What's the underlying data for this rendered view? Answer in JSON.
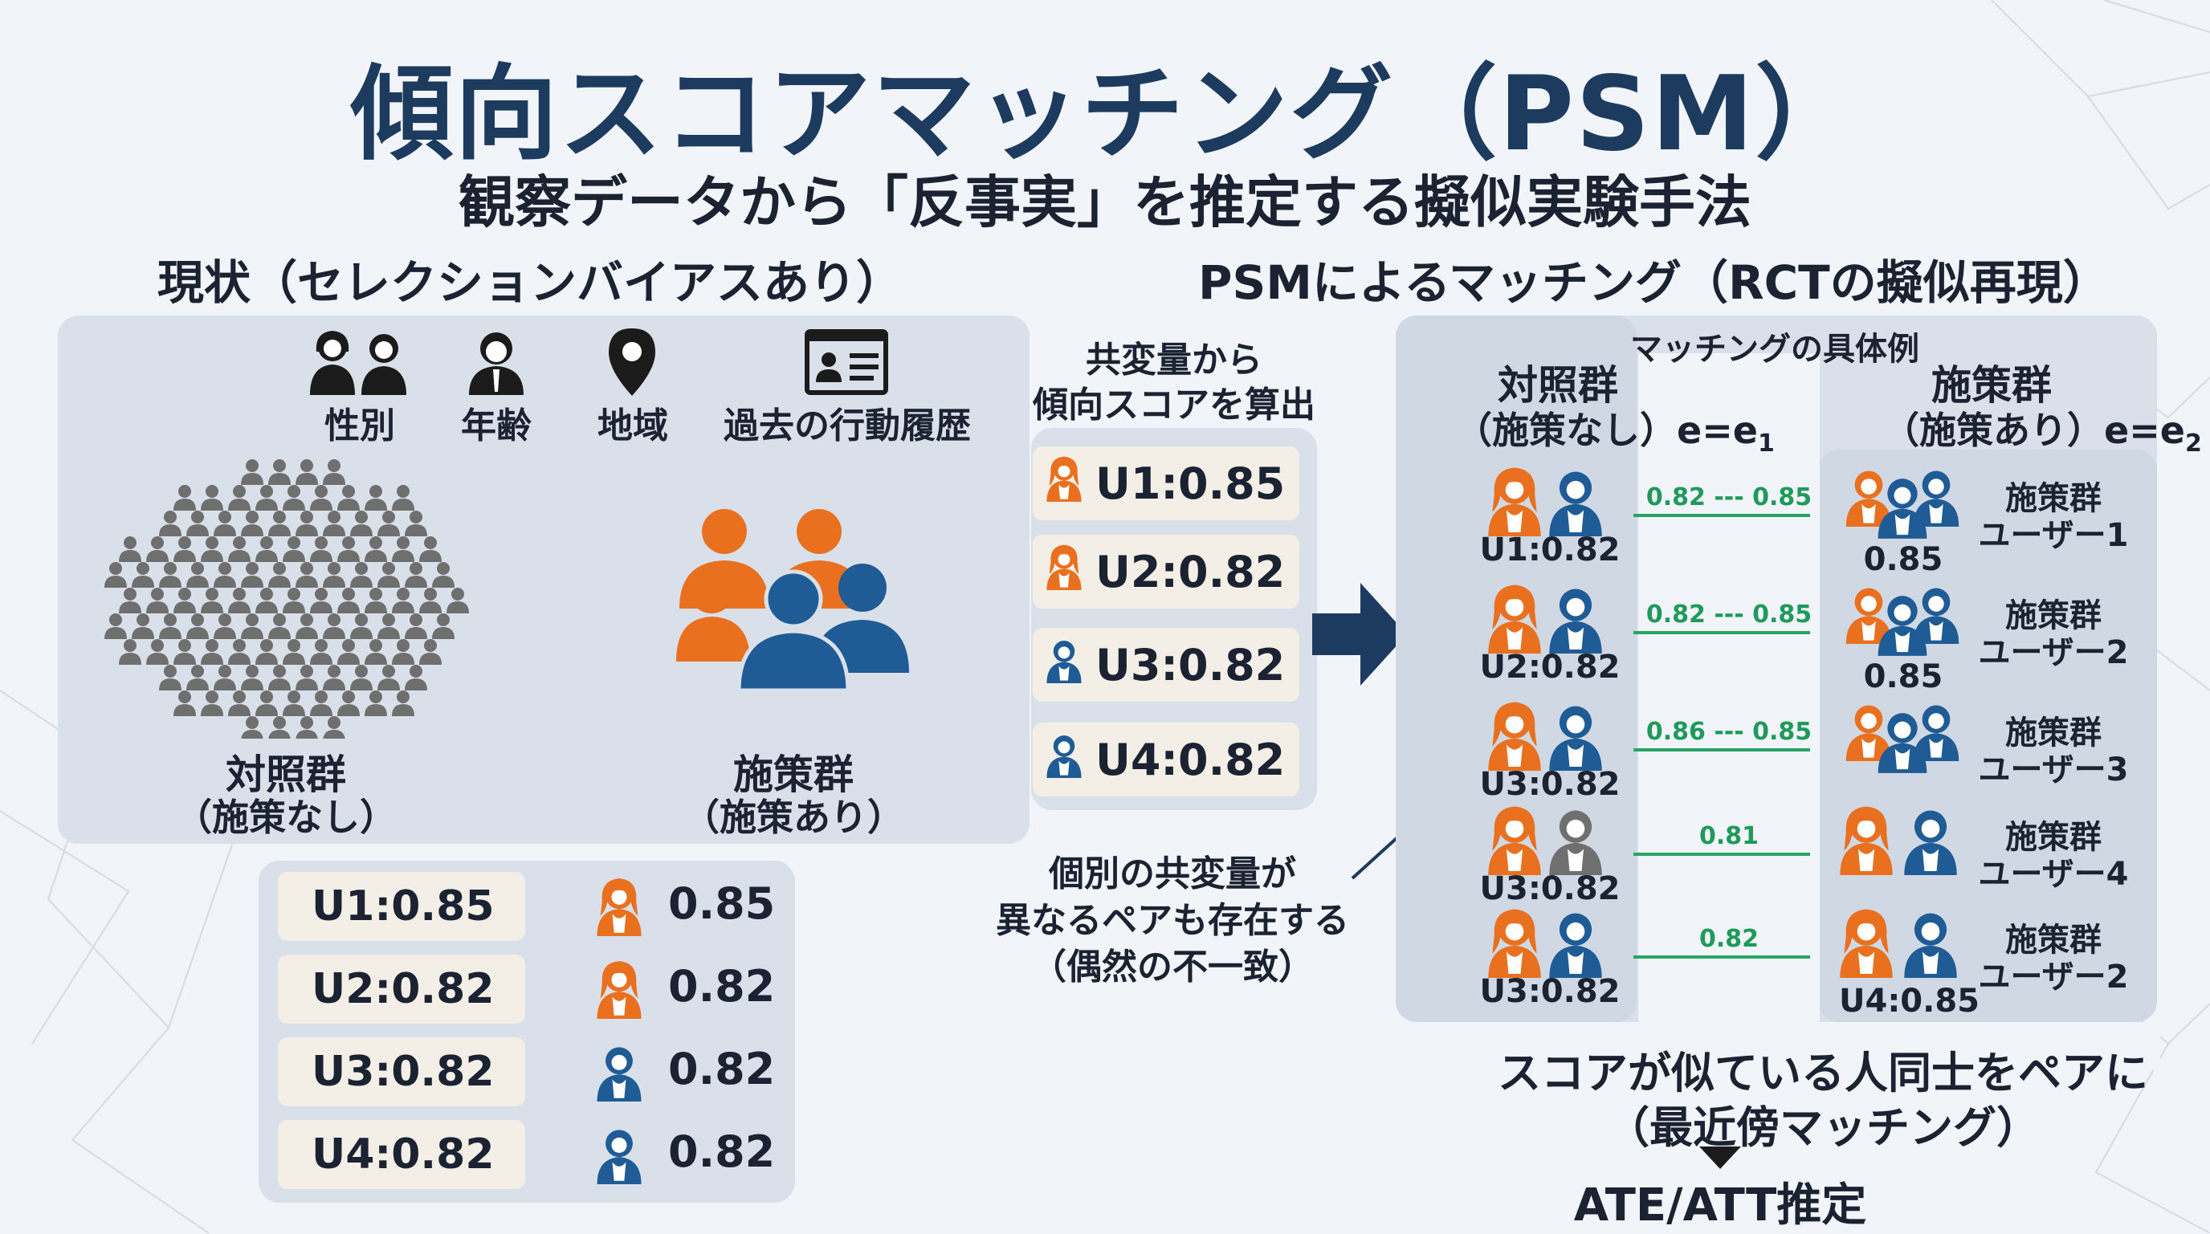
{
  "title": "傾向スコアマッチング（PSM）",
  "subtitle": "観察データから「反事実」を推定する擬似実験手法",
  "left": {
    "heading": "現状（セレクションバイアスあり）",
    "covariates": [
      {
        "icon": "gender-icon",
        "label": "性別"
      },
      {
        "icon": "age-icon",
        "label": "年齢"
      },
      {
        "icon": "location-pin-icon",
        "label": "地域"
      },
      {
        "icon": "history-card-icon",
        "label": "過去の行動履歴"
      }
    ],
    "control_label": "対照群",
    "control_sub": "（施策なし）",
    "treatment_label": "施策群",
    "treatment_sub": "（施策あり）",
    "score_rows": [
      {
        "id": "U1:0.85",
        "value": "0.85",
        "color": "orange"
      },
      {
        "id": "U2:0.82",
        "value": "0.82",
        "color": "orange"
      },
      {
        "id": "U3:0.82",
        "value": "0.82",
        "color": "blue"
      },
      {
        "id": "U4:0.82",
        "value": "0.82",
        "color": "blue"
      }
    ]
  },
  "middle": {
    "heading_line1": "共変量から",
    "heading_line2": "傾向スコアを算出",
    "scores": [
      {
        "text": "U1:0.85",
        "color": "orange"
      },
      {
        "text": "U2:0.82",
        "color": "orange"
      },
      {
        "text": "U3:0.82",
        "color": "blue"
      },
      {
        "text": "U4:0.82",
        "color": "blue"
      }
    ],
    "note_line1": "個別の共変量が",
    "note_line2": "異なるペアも存在する",
    "note_line3": "（偶然の不一致）"
  },
  "right": {
    "heading": "PSMによるマッチング（RCTの擬似再現）",
    "example_label": "マッチングの具体例",
    "control_label": "対照群",
    "control_sub": "（施策なし）",
    "control_e": "e=e",
    "control_e_sub": "1",
    "treatment_label": "施策群",
    "treatment_sub": "（施策あり）",
    "treatment_e": "e=e",
    "treatment_e_sub": "2",
    "pairs": [
      {
        "control": "U1:0.82",
        "link": "0.82 --- 0.85",
        "treat_score": "0.85",
        "treat_name_1": "施策群",
        "treat_name_2": "ユーザー1"
      },
      {
        "control": "U2:0.82",
        "link": "0.82 --- 0.85",
        "treat_score": "0.85",
        "treat_name_1": "施策群",
        "treat_name_2": "ユーザー2"
      },
      {
        "control": "U3:0.82",
        "link": "0.86 --- 0.85",
        "treat_score": "",
        "treat_name_1": "施策群",
        "treat_name_2": "ユーザー3"
      },
      {
        "control": "U3:0.82",
        "link": "0.81",
        "treat_score": "",
        "treat_name_1": "施策群",
        "treat_name_2": "ユーザー4"
      },
      {
        "control": "U3:0.82",
        "link": "0.82",
        "treat_score": "U4:0.85",
        "treat_name_1": "施策群",
        "treat_name_2": "ユーザー2"
      }
    ],
    "summary_line1": "スコアが似ている人同士をペアに",
    "summary_line2": "（最近傍マッチング）",
    "result": "ATE/ATT推定"
  },
  "colors": {
    "orange": "#e8701f",
    "blue": "#1f5b95",
    "gray": "#6f6f6f",
    "navy": "#1d3a5f",
    "green": "#28a464"
  }
}
